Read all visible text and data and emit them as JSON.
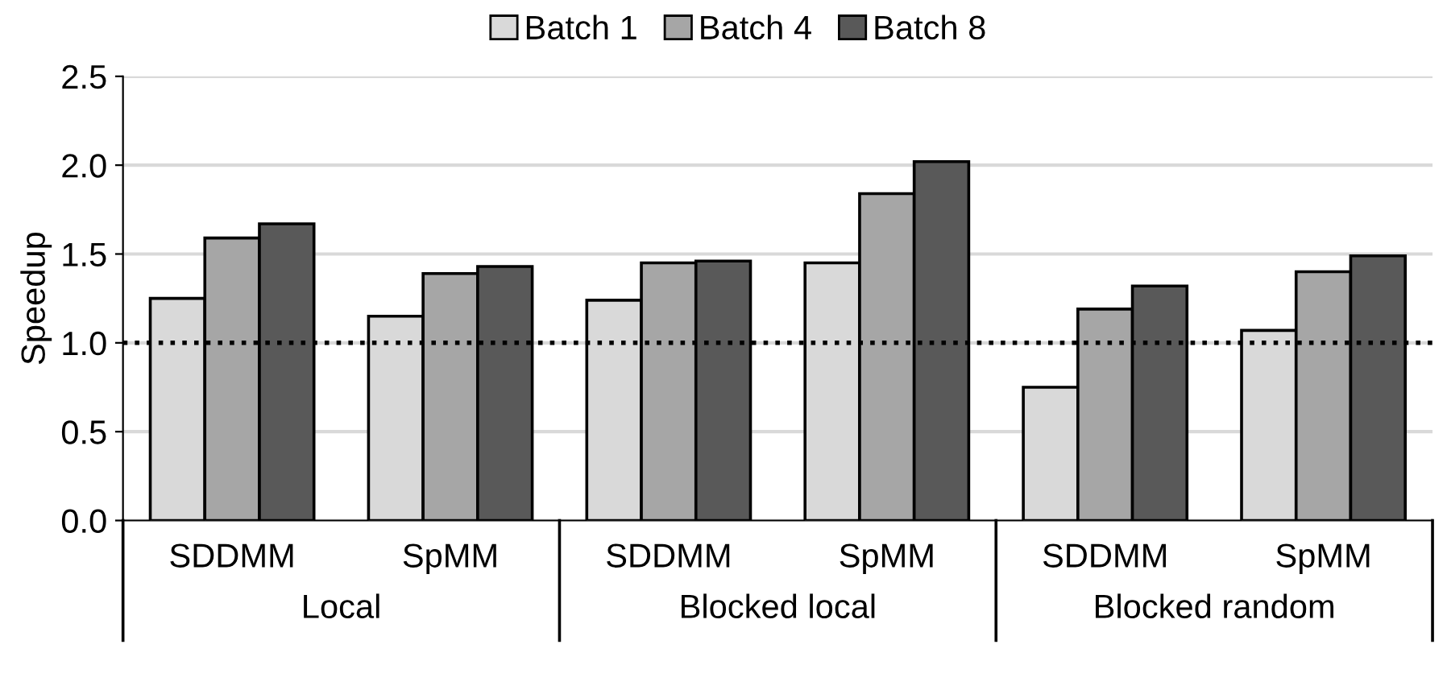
{
  "chart_data": {
    "type": "bar",
    "ylabel": "Speedup",
    "categories": [
      "SDDMM",
      "SpMM",
      "SDDMM",
      "SpMM",
      "SDDMM",
      "SpMM"
    ],
    "series": [
      {
        "name": "Batch 1",
        "color": "#d9d9d9",
        "values": [
          1.25,
          1.15,
          1.24,
          1.45,
          0.75,
          1.07
        ]
      },
      {
        "name": "Batch 4",
        "color": "#a6a6a6",
        "values": [
          1.59,
          1.39,
          1.45,
          1.84,
          1.19,
          1.4
        ]
      },
      {
        "name": "Batch 8",
        "color": "#595959",
        "values": [
          1.67,
          1.43,
          1.46,
          2.02,
          1.32,
          1.49
        ]
      }
    ],
    "annotations": [
      "Local",
      "Blocked local",
      "Blocked random"
    ],
    "ylim": [
      0,
      2.5
    ],
    "yticks": [
      {
        "value": 0,
        "label": "0.0"
      },
      {
        "value": 0.5,
        "label": "0.5"
      },
      {
        "value": 1,
        "label": "1.0"
      },
      {
        "value": 1.5,
        "label": "1.5"
      },
      {
        "value": 2,
        "label": "2.0"
      },
      {
        "value": 2.5,
        "label": "2.5"
      }
    ],
    "ref_lines": [
      {
        "axis": "y",
        "value": 1,
        "label": null,
        "color": "#000000",
        "line_style": "dotted"
      }
    ],
    "grid": "y",
    "legend": "top"
  }
}
